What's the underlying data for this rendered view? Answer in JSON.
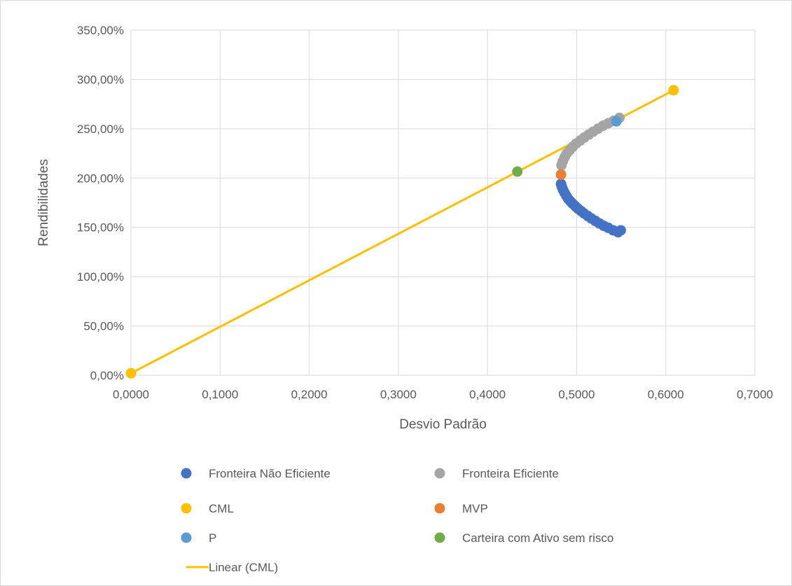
{
  "chart_data": {
    "type": "scatter",
    "title": "",
    "xlabel": "Desvio Padrão",
    "ylabel": "Rendibilidades",
    "xlim": [
      0,
      0.7
    ],
    "ylim": [
      0,
      3.5
    ],
    "grid": true,
    "legend_position": "bottom",
    "x_ticks": [
      0,
      0.1,
      0.2,
      0.3,
      0.4,
      0.5,
      0.6,
      0.7
    ],
    "x_tick_labels": [
      "0,0000",
      "0,1000",
      "0,2000",
      "0,3000",
      "0,4000",
      "0,5000",
      "0,6000",
      "0,7000"
    ],
    "y_ticks": [
      0,
      0.5,
      1.0,
      1.5,
      2.0,
      2.5,
      3.0,
      3.5
    ],
    "y_tick_labels": [
      "0,00%",
      "50,00%",
      "100,00%",
      "150,00%",
      "200,00%",
      "250,00%",
      "300,00%",
      "350,00%"
    ],
    "series": [
      {
        "name": "Fronteira Não Eficiente",
        "kind": "scatter",
        "color": "#4472C4",
        "points": [
          [
            0.4825,
            1.94
          ],
          [
            0.4835,
            1.91
          ],
          [
            0.4848,
            1.88
          ],
          [
            0.4865,
            1.85
          ],
          [
            0.4885,
            1.82
          ],
          [
            0.4905,
            1.79
          ],
          [
            0.493,
            1.765
          ],
          [
            0.4955,
            1.74
          ],
          [
            0.4985,
            1.715
          ],
          [
            0.5015,
            1.69
          ],
          [
            0.505,
            1.665
          ],
          [
            0.5085,
            1.64
          ],
          [
            0.5125,
            1.615
          ],
          [
            0.5165,
            1.59
          ],
          [
            0.521,
            1.565
          ],
          [
            0.5255,
            1.54
          ],
          [
            0.5305,
            1.515
          ],
          [
            0.5355,
            1.495
          ],
          [
            0.541,
            1.47
          ],
          [
            0.5465,
            1.45
          ],
          [
            0.5495,
            1.47
          ]
        ]
      },
      {
        "name": "Fronteira Eficiente",
        "kind": "scatter",
        "color": "#A5A5A5",
        "points": [
          [
            0.483,
            2.13
          ],
          [
            0.4845,
            2.17
          ],
          [
            0.4865,
            2.21
          ],
          [
            0.489,
            2.25
          ],
          [
            0.492,
            2.28
          ],
          [
            0.4955,
            2.315
          ],
          [
            0.4995,
            2.35
          ],
          [
            0.504,
            2.38
          ],
          [
            0.5085,
            2.41
          ],
          [
            0.5135,
            2.44
          ],
          [
            0.5185,
            2.47
          ],
          [
            0.524,
            2.5
          ],
          [
            0.5295,
            2.53
          ],
          [
            0.5355,
            2.555
          ],
          [
            0.5415,
            2.58
          ],
          [
            0.548,
            2.61
          ]
        ]
      },
      {
        "name": "CML",
        "kind": "scatter",
        "color": "#FFC000",
        "points": [
          [
            0.0,
            0.02
          ],
          [
            0.6088,
            2.89
          ]
        ]
      },
      {
        "name": "MVP",
        "kind": "scatter",
        "color": "#ED7D31",
        "points": [
          [
            0.4825,
            2.035
          ]
        ]
      },
      {
        "name": "P",
        "kind": "scatter",
        "color": "#5B9BD5",
        "points": [
          [
            0.5445,
            2.575
          ]
        ]
      },
      {
        "name": "Carteira com Ativo sem risco",
        "kind": "scatter",
        "color": "#70AD47",
        "points": [
          [
            0.4335,
            2.065
          ]
        ]
      },
      {
        "name": "Linear (CML)",
        "kind": "line",
        "color": "#FFC000",
        "points": [
          [
            0.0,
            0.02
          ],
          [
            0.6088,
            2.89
          ]
        ]
      }
    ]
  }
}
